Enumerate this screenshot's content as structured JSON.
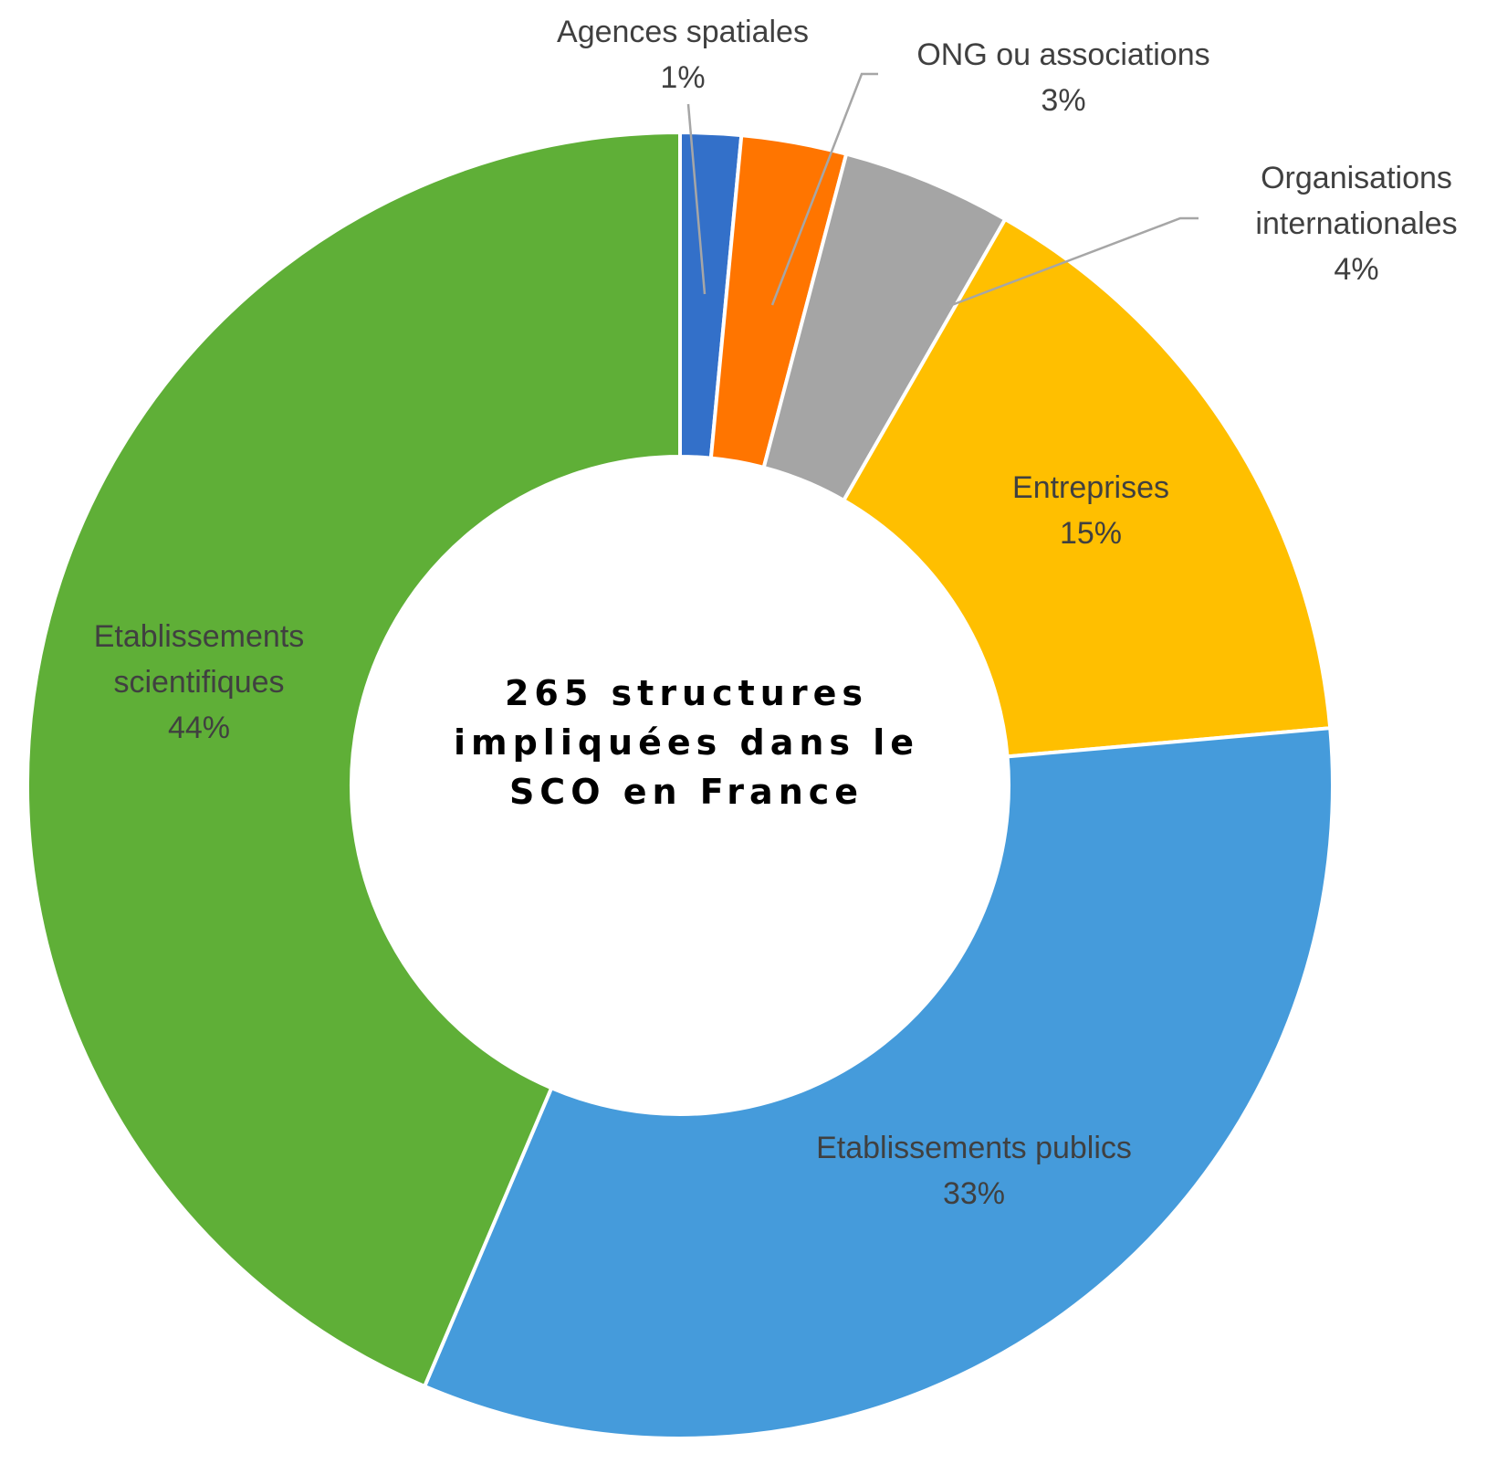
{
  "chart_data": {
    "type": "pie",
    "subtype": "doughnut",
    "center_text": [
      "265 structures",
      "impliquées dans le",
      "SCO en France"
    ],
    "slices": [
      {
        "name": "Agences spatiales",
        "label_lines": [
          "Agences spatiales"
        ],
        "percent_label": "1%",
        "value": 1.5,
        "color": "#3370C9"
      },
      {
        "name": "ONG ou associations",
        "label_lines": [
          "ONG ou associations"
        ],
        "percent_label": "3%",
        "value": 2.6,
        "color": "#FF7500"
      },
      {
        "name": "Organisations internationales",
        "label_lines": [
          "Organisations",
          "internationales"
        ],
        "percent_label": "4%",
        "value": 4.2,
        "color": "#A5A5A5"
      },
      {
        "name": "Entreprises",
        "label_lines": [
          "Entreprises"
        ],
        "percent_label": "15%",
        "value": 15.3,
        "color": "#FFBF00"
      },
      {
        "name": "Etablissements publics",
        "label_lines": [
          "Etablissements publics"
        ],
        "percent_label": "33%",
        "value": 32.8,
        "color": "#459BDB"
      },
      {
        "name": "Etablissements scientifiques",
        "label_lines": [
          "Etablissements",
          "scientifiques"
        ],
        "percent_label": "44%",
        "value": 43.6,
        "color": "#5FAF37"
      }
    ],
    "start_angle_deg": 0,
    "direction": "clockwise",
    "legend": "none"
  }
}
